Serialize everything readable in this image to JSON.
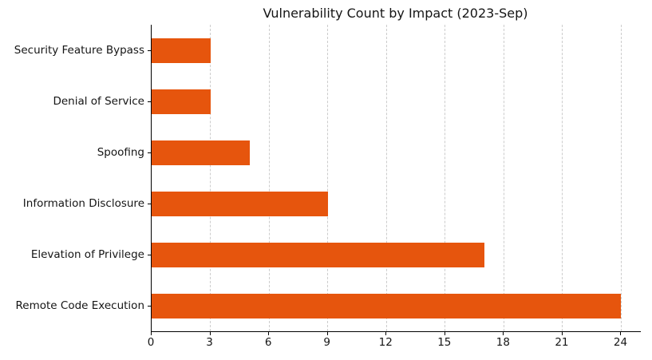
{
  "title": "Vulnerability Count by Impact (2023-Sep)",
  "chart_data": {
    "type": "bar",
    "orientation": "horizontal",
    "title": "Vulnerability Count by Impact (2023-Sep)",
    "categories": [
      "Security Feature Bypass",
      "Denial of Service",
      "Spoofing",
      "Information Disclosure",
      "Elevation of Privilege",
      "Remote Code Execution"
    ],
    "values": [
      3,
      3,
      5,
      9,
      17,
      24
    ],
    "xlabel": "",
    "ylabel": "",
    "xlim": [
      0,
      25
    ],
    "xticks": [
      0,
      3,
      6,
      9,
      12,
      15,
      18,
      21,
      24
    ],
    "grid": "vertical-dashed",
    "legend": "none",
    "colors": {
      "bar": "#e6550d",
      "background": "#ffffff",
      "text": "#151515",
      "grid": "#cccccc",
      "axis": "#000000"
    }
  }
}
